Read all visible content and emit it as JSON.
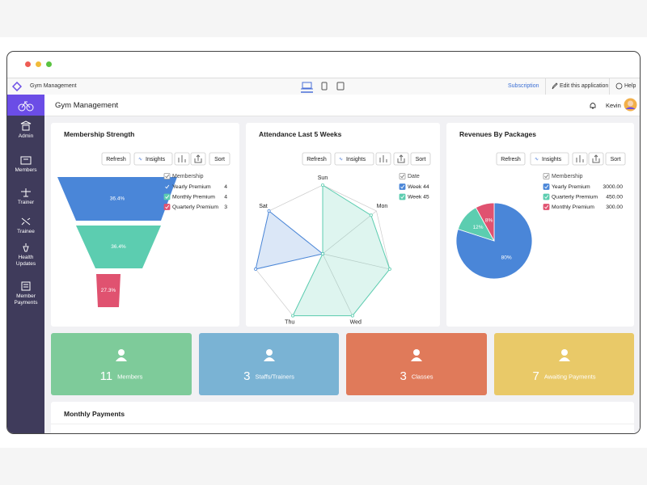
{
  "browser": {
    "app_name": "Gym Management",
    "links": [
      "Subscription",
      "Edit this application",
      "Help"
    ]
  },
  "header": {
    "title": "Gym Management",
    "user": "Kevin"
  },
  "sidebar": {
    "items": [
      "Admin",
      "Members",
      "Trainer",
      "Trainee",
      "Health Updates",
      "Member Payments"
    ]
  },
  "toolbar_buttons": [
    "Refresh",
    "Insights",
    "Sort"
  ],
  "chart_data": [
    {
      "type": "funnel",
      "title": "Membership Strength",
      "legend_title": "Membership",
      "categories": [
        "Yearly Premium",
        "Monthly Premium",
        "Quarterly Premium"
      ],
      "values": [
        4,
        4,
        3
      ],
      "shares": [
        36.4,
        36.4,
        27.3
      ],
      "share_labels": [
        "36.4%",
        "36.4%",
        "27.3%"
      ],
      "colors": [
        "#4a86d8",
        "#5ccdb0",
        "#e05270"
      ]
    },
    {
      "type": "radar",
      "title": "Attendance Last 5 Weeks",
      "legend_title": "Date",
      "categories": [
        "Sun",
        "Mon",
        null,
        "Wed",
        "Thu",
        null,
        "Sat"
      ],
      "rlim": [
        0,
        10
      ],
      "series": [
        {
          "name": "Week 44",
          "color": "#4a86d8",
          "values": [
            0,
            0,
            0,
            0,
            0,
            10,
            10
          ]
        },
        {
          "name": "Week 45",
          "color": "#5ccdb0",
          "values": [
            10,
            9,
            10,
            10,
            10,
            0,
            0
          ]
        }
      ]
    },
    {
      "type": "pie",
      "title": "Revenues By Packages",
      "legend_title": "Membership",
      "categories": [
        "Yearly Premium",
        "Quarterly Premium",
        "Monthly Premium"
      ],
      "values": [
        3000,
        450,
        300
      ],
      "value_labels": [
        "3000.00",
        "450.00",
        "300.00"
      ],
      "shares": [
        80,
        12,
        8
      ],
      "share_labels": [
        "80%",
        "12%",
        "8%"
      ],
      "colors": [
        "#4a86d8",
        "#5ccdb0",
        "#e05270"
      ]
    }
  ],
  "tiles": [
    {
      "value": 11,
      "label": "Members",
      "color": "#7ecb9a"
    },
    {
      "value": 3,
      "label": "Staffs/Trainers",
      "color": "#7ab3d4"
    },
    {
      "value": 3,
      "label": "Classes",
      "color": "#e07a5a"
    },
    {
      "value": 7,
      "label": "Awaiting Payments",
      "color": "#e9c968"
    }
  ],
  "section": {
    "title": "Monthly Payments"
  }
}
